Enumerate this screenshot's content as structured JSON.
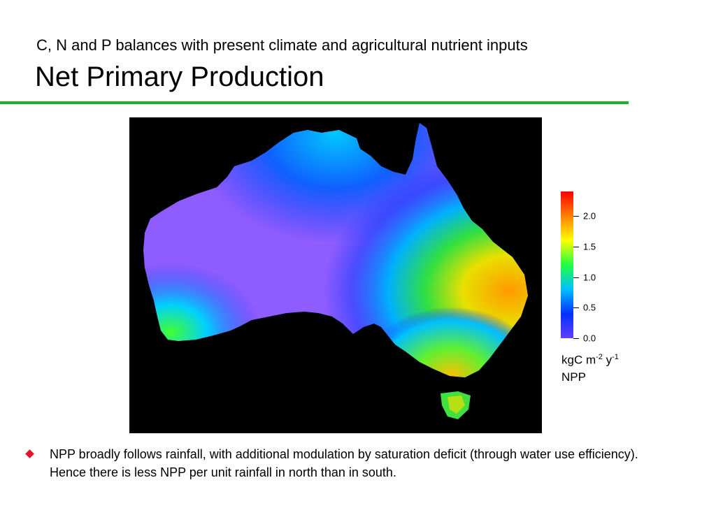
{
  "header": {
    "subtitle": "C, N and P balances with present climate and agricultural nutrient inputs",
    "title": "Net Primary Production"
  },
  "map": {
    "region": "Australia",
    "background_color": "#000000"
  },
  "colorbar": {
    "ticks": [
      "2.0",
      "1.5",
      "1.0",
      "0.5",
      "0.0"
    ],
    "tick_values": [
      2.0,
      1.5,
      1.0,
      0.5,
      0.0
    ],
    "range": [
      0.0,
      2.4
    ],
    "colors": [
      "#6040ff",
      "#0030ff",
      "#00c0ff",
      "#20ff40",
      "#ffff00",
      "#ff8000",
      "#ff0000"
    ],
    "unit_base": "kgC m",
    "unit_exp1": "-2",
    "unit_mid": " y",
    "unit_exp2": "-1",
    "variable": "NPP"
  },
  "bullets": [
    {
      "icon": "diamond-bullet-icon",
      "color": "#e0142a",
      "text": "NPP broadly follows rainfall, with additional modulation by saturation deficit (through  water use efficiency). Hence there is less NPP per unit rainfall in north than in south."
    }
  ]
}
